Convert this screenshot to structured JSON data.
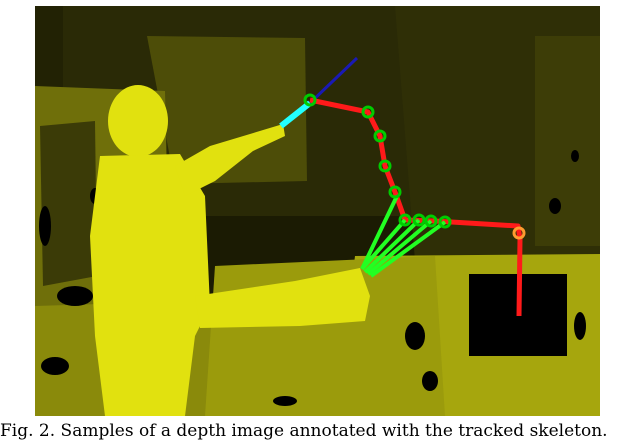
{
  "figure": {
    "description_alt": "Depth image with skeleton overlay",
    "colors": {
      "background_dark": "#2a2a06",
      "depth_far": "#4a4a08",
      "depth_mid": "#8d8d0c",
      "depth_near": "#c9c90e",
      "person": "#e1e10f",
      "joint_edge_red": "#ff1a1a",
      "link_green": "#22ff22",
      "joint_ring_green": "#00cc00",
      "tool_cyan": "#22ffff",
      "tool_blue": "#1a1ab4",
      "hole_black": "#000000"
    }
  },
  "caption": {
    "text": "Fig. 2. Samples of a depth image annotated with the tracked skeleton."
  }
}
